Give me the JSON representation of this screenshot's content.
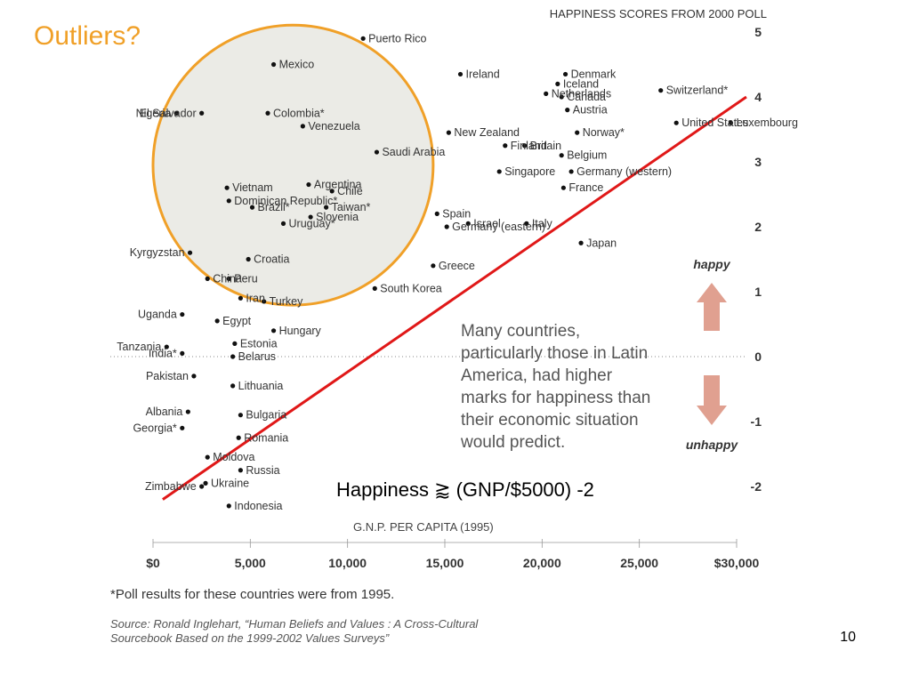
{
  "slide": {
    "title": "Outliers?",
    "page_number": "10",
    "equation": "Happiness ⪆ (GNP/$5000) -2",
    "footnote": "*Poll results for these countries were from 1995.",
    "source_line1": "Source: Ronald Inglehart, “Human Beliefs and Values : A Cross-Cultural",
    "source_line2": "Sourcebook Based on the 1999-2002 Values Surveys”",
    "callout": "Many countries, particularly those in Latin America, had higher marks for happiness than their economic situation would predict."
  },
  "colors": {
    "title": "#f0a028",
    "highlight_circle": "#f0a028",
    "highlight_fill": "#ebebe6",
    "trend_line": "#e01818",
    "arrow": "#e0a090"
  },
  "chart_data": {
    "type": "scatter",
    "title": "HAPPINESS SCORES FROM 2000 POLL",
    "xlabel": "G.N.P. PER CAPITA (1995)",
    "ylabel": "",
    "xlim": [
      0,
      30000
    ],
    "ylim": [
      -2,
      5
    ],
    "x_ticks": [
      {
        "value": 0,
        "label": "$0"
      },
      {
        "value": 5000,
        "label": "5,000"
      },
      {
        "value": 10000,
        "label": "10,000"
      },
      {
        "value": 15000,
        "label": "15,000"
      },
      {
        "value": 20000,
        "label": "20,000"
      },
      {
        "value": 25000,
        "label": "25,000"
      },
      {
        "value": 30000,
        "label": "$30,000"
      }
    ],
    "y_ticks": [
      {
        "value": 5,
        "label": "5"
      },
      {
        "value": 4,
        "label": "4"
      },
      {
        "value": 3,
        "label": "3"
      },
      {
        "value": 2,
        "label": "2"
      },
      {
        "value": 1,
        "label": "1"
      },
      {
        "value": 0,
        "label": "0"
      },
      {
        "value": -1,
        "label": "-1"
      },
      {
        "value": -2,
        "label": "-2"
      }
    ],
    "happy_label": "happy",
    "unhappy_label": "unhappy",
    "trend_line": {
      "x": [
        500,
        30500
      ],
      "y": [
        -2.2,
        4.0
      ]
    },
    "highlight_circle": {
      "cx": 7200,
      "cy": 2.95,
      "r_x": 7200
    },
    "points": [
      {
        "name": "Puerto Rico",
        "x": 10800,
        "y": 4.9
      },
      {
        "name": "Mexico",
        "x": 6200,
        "y": 4.5
      },
      {
        "name": "El Salvador",
        "x": 2500,
        "y": 3.75
      },
      {
        "name": "Nigeria",
        "x": 1200,
        "y": 3.75
      },
      {
        "name": "Colombia*",
        "x": 5900,
        "y": 3.75
      },
      {
        "name": "Venezuela",
        "x": 7700,
        "y": 3.55
      },
      {
        "name": "Saudi Arabia",
        "x": 11500,
        "y": 3.15
      },
      {
        "name": "Argentina",
        "x": 8000,
        "y": 2.65
      },
      {
        "name": "Chile",
        "x": 9200,
        "y": 2.55
      },
      {
        "name": "Vietnam",
        "x": 3800,
        "y": 2.6
      },
      {
        "name": "Dominican Republic*",
        "x": 3900,
        "y": 2.4
      },
      {
        "name": "Brazil*",
        "x": 5100,
        "y": 2.3
      },
      {
        "name": "Taiwan*",
        "x": 8900,
        "y": 2.3
      },
      {
        "name": "Uruguay*",
        "x": 6700,
        "y": 2.05
      },
      {
        "name": "Slovenia",
        "x": 8100,
        "y": 2.15
      },
      {
        "name": "Kyrgyzstan",
        "x": 1900,
        "y": 1.6
      },
      {
        "name": "Croatia",
        "x": 4900,
        "y": 1.5
      },
      {
        "name": "China",
        "x": 2800,
        "y": 1.2
      },
      {
        "name": "Peru",
        "x": 3900,
        "y": 1.2
      },
      {
        "name": "Iran",
        "x": 4500,
        "y": 0.9
      },
      {
        "name": "Turkey",
        "x": 5700,
        "y": 0.85
      },
      {
        "name": "Ireland",
        "x": 15800,
        "y": 4.35
      },
      {
        "name": "Iceland",
        "x": 20800,
        "y": 4.2
      },
      {
        "name": "Denmark",
        "x": 21200,
        "y": 4.35
      },
      {
        "name": "Netherlands",
        "x": 20200,
        "y": 4.05
      },
      {
        "name": "Canada",
        "x": 21000,
        "y": 4.0
      },
      {
        "name": "Switzerland*",
        "x": 26100,
        "y": 4.1
      },
      {
        "name": "Austria",
        "x": 21300,
        "y": 3.8
      },
      {
        "name": "Luxembourg",
        "x": 29700,
        "y": 3.6
      },
      {
        "name": "New Zealand",
        "x": 15200,
        "y": 3.45
      },
      {
        "name": "Norway*",
        "x": 21800,
        "y": 3.45
      },
      {
        "name": "Finland",
        "x": 18100,
        "y": 3.25
      },
      {
        "name": "Britain",
        "x": 19100,
        "y": 3.25
      },
      {
        "name": "Belgium",
        "x": 21000,
        "y": 3.1
      },
      {
        "name": "United States",
        "x": 26900,
        "y": 3.6
      },
      {
        "name": "Singapore",
        "x": 17800,
        "y": 2.85
      },
      {
        "name": "Germany (western)",
        "x": 21500,
        "y": 2.85
      },
      {
        "name": "France",
        "x": 21100,
        "y": 2.6
      },
      {
        "name": "Spain",
        "x": 14600,
        "y": 2.2
      },
      {
        "name": "Israel",
        "x": 16200,
        "y": 2.05
      },
      {
        "name": "Italy",
        "x": 19200,
        "y": 2.05
      },
      {
        "name": "Germany (eastern)",
        "x": 15100,
        "y": 2.0
      },
      {
        "name": "Japan",
        "x": 22000,
        "y": 1.75
      },
      {
        "name": "Greece",
        "x": 14400,
        "y": 1.4
      },
      {
        "name": "South Korea",
        "x": 11400,
        "y": 1.05
      },
      {
        "name": "Uganda",
        "x": 1500,
        "y": 0.65
      },
      {
        "name": "Egypt",
        "x": 3300,
        "y": 0.55
      },
      {
        "name": "Hungary",
        "x": 6200,
        "y": 0.4
      },
      {
        "name": "Tanzania",
        "x": 700,
        "y": 0.15
      },
      {
        "name": "Estonia",
        "x": 4200,
        "y": 0.2
      },
      {
        "name": "India*",
        "x": 1500,
        "y": 0.05
      },
      {
        "name": "Belarus",
        "x": 4100,
        "y": 0.0
      },
      {
        "name": "Pakistan",
        "x": 2100,
        "y": -0.3
      },
      {
        "name": "Lithuania",
        "x": 4100,
        "y": -0.45
      },
      {
        "name": "Albania",
        "x": 1800,
        "y": -0.85
      },
      {
        "name": "Bulgaria",
        "x": 4500,
        "y": -0.9
      },
      {
        "name": "Georgia*",
        "x": 1500,
        "y": -1.1
      },
      {
        "name": "Romania",
        "x": 4400,
        "y": -1.25
      },
      {
        "name": "Moldova",
        "x": 2800,
        "y": -1.55
      },
      {
        "name": "Russia",
        "x": 4500,
        "y": -1.75
      },
      {
        "name": "Ukraine",
        "x": 2700,
        "y": -1.95
      },
      {
        "name": "Zimbabwe",
        "x": 2500,
        "y": -2.0
      },
      {
        "name": "Indonesia",
        "x": 3900,
        "y": -2.3
      }
    ]
  }
}
